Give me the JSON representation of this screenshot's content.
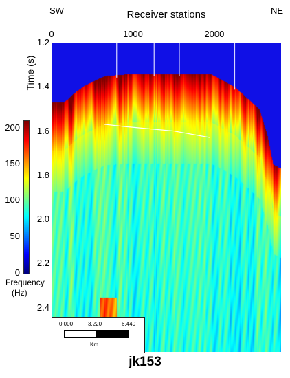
{
  "header": {
    "left_direction": "SW",
    "right_direction": "NE"
  },
  "chart_data": {
    "type": "heatmap",
    "title": "jk153",
    "xlabel": "Receiver stations",
    "ylabel": "Time (s)",
    "xlim": [
      0,
      2820
    ],
    "ylim": [
      1.2,
      2.6
    ],
    "x_ticks": [
      "0",
      "1000",
      "2000"
    ],
    "x_tick_values": [
      0,
      1000,
      2000
    ],
    "y_ticks": [
      "1.2",
      "1.4",
      "1.6",
      "1.8",
      "2.0",
      "2.2",
      "2.4"
    ],
    "y_tick_values": [
      1.2,
      1.4,
      1.6,
      1.8,
      2.0,
      2.2,
      2.4
    ],
    "colorbar": {
      "label": "Frequency (Hz)",
      "label_line1": "Frequency",
      "label_line2": "(Hz)",
      "ticks": [
        "200",
        "150",
        "100",
        "50",
        "0"
      ],
      "tick_values": [
        200,
        150,
        100,
        50,
        0
      ],
      "range": [
        0,
        210
      ],
      "colormap": "jet"
    },
    "vertical_lines_x": [
      800,
      1260,
      1570,
      2250
    ],
    "top_boundary": [
      [
        0,
        1.47
      ],
      [
        150,
        1.47
      ],
      [
        300,
        1.42
      ],
      [
        420,
        1.39
      ],
      [
        650,
        1.35
      ],
      [
        1000,
        1.34
      ],
      [
        1400,
        1.34
      ],
      [
        1950,
        1.34
      ],
      [
        2250,
        1.4
      ],
      [
        2550,
        1.5
      ],
      [
        2650,
        1.62
      ],
      [
        2720,
        1.75
      ],
      [
        2820,
        1.77
      ]
    ],
    "horizon_line": [
      [
        650,
        1.57
      ],
      [
        900,
        1.58
      ],
      [
        1200,
        1.59
      ],
      [
        1500,
        1.6
      ],
      [
        1800,
        1.62
      ],
      [
        1950,
        1.63
      ]
    ],
    "scale_bar": {
      "labels": [
        "0.000",
        "3.220",
        "6.440"
      ],
      "unit": "Km"
    },
    "background_color": "#1010e6"
  }
}
